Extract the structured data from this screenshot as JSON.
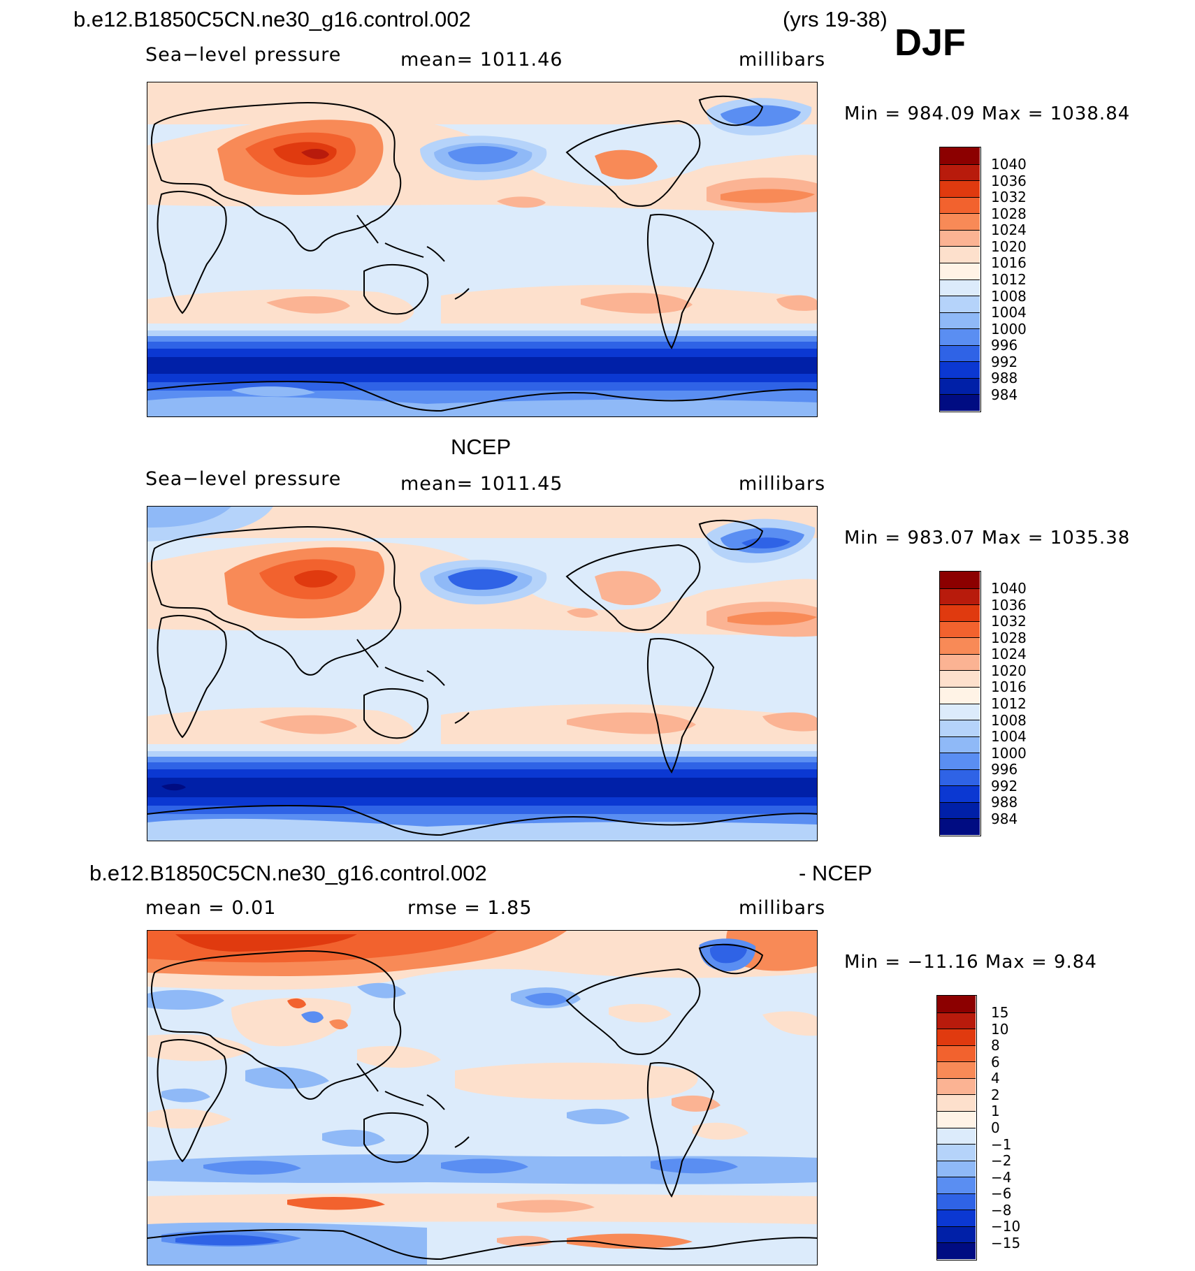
{
  "figure": {
    "case_title": "b.e12.B1850C5CN.ne30_g16.control.002",
    "years": "(yrs 19-38)",
    "season": "DJF"
  },
  "panels": [
    {
      "id": "model",
      "variable": "Sea−level pressure",
      "mean_text": "mean=  1011.46",
      "units": "millibars",
      "minmax": "Min  =  984.09  Max  =  1038.84",
      "levels": [
        "1040",
        "1036",
        "1032",
        "1028",
        "1024",
        "1020",
        "1016",
        "1012",
        "1008",
        "1004",
        "1000",
        "996",
        "992",
        "988",
        "984"
      ]
    },
    {
      "id": "obs",
      "title": "NCEP",
      "variable": "Sea−level pressure",
      "mean_text": "mean=  1011.45",
      "units": "millibars",
      "minmax": "Min  =  983.07  Max  =  1035.38",
      "levels": [
        "1040",
        "1036",
        "1032",
        "1028",
        "1024",
        "1020",
        "1016",
        "1012",
        "1008",
        "1004",
        "1000",
        "996",
        "992",
        "988",
        "984"
      ]
    },
    {
      "id": "diff",
      "title_left": "b.e12.B1850C5CN.ne30_g16.control.002",
      "title_right": "- NCEP",
      "mean_text": "mean =     0.01",
      "rmse_text": "rmse =     1.85",
      "units": "millibars",
      "minmax": "Min  =  −11.16  Max  =     9.84",
      "levels": [
        "15",
        "10",
        "8",
        "6",
        "4",
        "2",
        "1",
        "0",
        "−1",
        "−2",
        "−4",
        "−6",
        "−8",
        "−10",
        "−15"
      ]
    }
  ],
  "colors": {
    "ramp": [
      "#8c0000",
      "#b81b0c",
      "#e03a0f",
      "#f2622e",
      "#f88a57",
      "#fbb393",
      "#fde0cc",
      "#fff3e6",
      "#dcebfb",
      "#b5d3fa",
      "#8fb9f7",
      "#5a8ef2",
      "#2f63e6",
      "#0b38d2",
      "#0020a8",
      "#000c82"
    ]
  }
}
